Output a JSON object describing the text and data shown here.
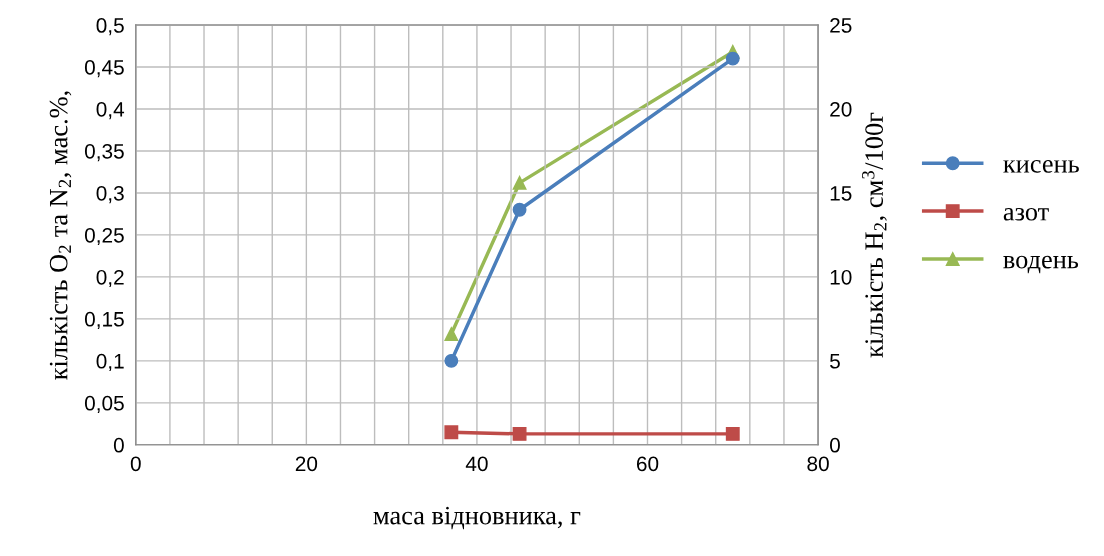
{
  "chart_data": {
    "type": "line",
    "xlabel": "маса відновника, г",
    "ylabel": "кількість O$_{2}$ та N$_{2}$, мас.%,",
    "y2label": "кількість H$_{2}$, см$^{3}$/100г",
    "x": [
      37,
      45,
      70
    ],
    "series": [
      {
        "name": "кисень",
        "color": "#4a7ebb",
        "marker": "circle",
        "values": [
          0.1,
          0.28,
          0.46
        ]
      },
      {
        "name": "азот",
        "color": "#be4b48",
        "marker": "square",
        "values": [
          0.015,
          0.013,
          0.013
        ]
      },
      {
        "name": "водень",
        "color": "#98b954",
        "marker": "triangle",
        "axis": "y2",
        "values": [
          6.6,
          15.6,
          23.4
        ]
      }
    ],
    "xlim": [
      0,
      80
    ],
    "xticks": [
      0,
      {
        "value": 4,
        "label": null
      },
      {
        "value": 8,
        "label": null
      },
      {
        "value": 12,
        "label": null
      },
      {
        "value": 16,
        "label": null
      },
      20,
      {
        "value": 24,
        "label": null
      },
      {
        "value": 28,
        "label": null
      },
      {
        "value": 32,
        "label": null
      },
      {
        "value": 36,
        "label": null
      },
      40,
      {
        "value": 44,
        "label": null
      },
      {
        "value": 48,
        "label": null
      },
      {
        "value": 52,
        "label": null
      },
      {
        "value": 56,
        "label": null
      },
      60,
      {
        "value": 64,
        "label": null
      },
      {
        "value": 68,
        "label": null
      },
      {
        "value": 72,
        "label": null
      },
      {
        "value": 76,
        "label": null
      },
      80
    ],
    "ylim": [
      0,
      0.5
    ],
    "yticks": [
      0,
      {
        "value": 0.05,
        "label": "0,05"
      },
      {
        "value": 0.1,
        "label": "0,1"
      },
      {
        "value": 0.15,
        "label": "0,15"
      },
      {
        "value": 0.2,
        "label": "0,2"
      },
      {
        "value": 0.25,
        "label": "0,25"
      },
      {
        "value": 0.3,
        "label": "0,3"
      },
      {
        "value": 0.35,
        "label": "0,35"
      },
      {
        "value": 0.4,
        "label": "0,4"
      },
      {
        "value": 0.45,
        "label": "0,45"
      },
      {
        "value": 0.5,
        "label": "0,5"
      }
    ],
    "y2lim": [
      0,
      25
    ],
    "y2ticks": [
      0,
      5,
      10,
      15,
      20,
      25
    ],
    "grid": true,
    "legend": "right",
    "line_style": "solid"
  }
}
